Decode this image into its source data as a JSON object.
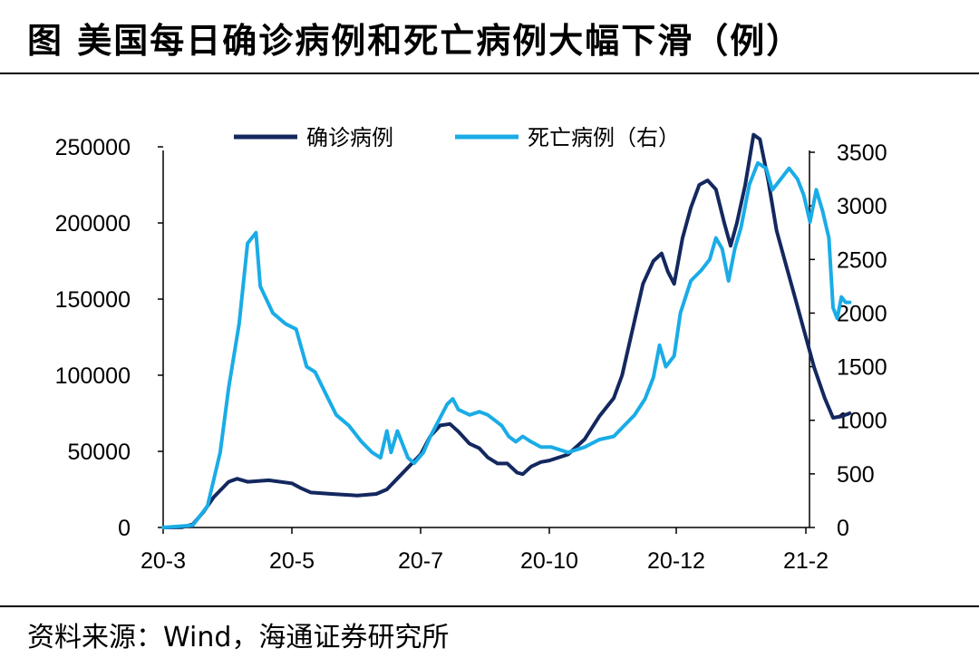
{
  "title": "图  美国每日确诊病例和死亡病例大幅下滑（例）",
  "source": "资料来源：Wind，海通证券研究所",
  "chart_data": {
    "type": "line",
    "x_ticks": [
      "20-3",
      "20-5",
      "20-7",
      "20-10",
      "20-12",
      "21-2"
    ],
    "y_left_ticks": [
      "0",
      "50000",
      "100000",
      "150000",
      "200000",
      "250000"
    ],
    "y_right_ticks": [
      "0",
      "500",
      "1000",
      "1500",
      "2000",
      "2500",
      "3000",
      "3500"
    ],
    "y_left_range": [
      0,
      260000
    ],
    "y_right_range": [
      0,
      3500
    ],
    "legend_position": "top-center",
    "grid": false,
    "series": [
      {
        "name": "确诊病例",
        "axis": "left",
        "color": "#14285f",
        "points": [
          [
            "2020-03-01",
            0
          ],
          [
            "2020-03-10",
            200
          ],
          [
            "2020-03-15",
            2000
          ],
          [
            "2020-03-20",
            10000
          ],
          [
            "2020-03-25",
            20000
          ],
          [
            "2020-04-01",
            30000
          ],
          [
            "2020-04-05",
            32000
          ],
          [
            "2020-04-10",
            30000
          ],
          [
            "2020-04-20",
            31000
          ],
          [
            "2020-05-01",
            29000
          ],
          [
            "2020-05-05",
            26000
          ],
          [
            "2020-05-10",
            23000
          ],
          [
            "2020-05-20",
            22000
          ],
          [
            "2020-06-01",
            21000
          ],
          [
            "2020-06-10",
            22000
          ],
          [
            "2020-06-15",
            25000
          ],
          [
            "2020-06-22",
            35000
          ],
          [
            "2020-07-01",
            48000
          ],
          [
            "2020-07-08",
            60000
          ],
          [
            "2020-07-15",
            67000
          ],
          [
            "2020-07-22",
            68000
          ],
          [
            "2020-07-28",
            63000
          ],
          [
            "2020-08-05",
            55000
          ],
          [
            "2020-08-12",
            52000
          ],
          [
            "2020-08-18",
            46000
          ],
          [
            "2020-08-25",
            42000
          ],
          [
            "2020-09-01",
            42000
          ],
          [
            "2020-09-08",
            36000
          ],
          [
            "2020-09-12",
            35000
          ],
          [
            "2020-09-18",
            40000
          ],
          [
            "2020-09-25",
            43000
          ],
          [
            "2020-10-01",
            44000
          ],
          [
            "2020-10-10",
            48000
          ],
          [
            "2020-10-18",
            58000
          ],
          [
            "2020-10-25",
            73000
          ],
          [
            "2020-11-01",
            85000
          ],
          [
            "2020-11-05",
            100000
          ],
          [
            "2020-11-10",
            130000
          ],
          [
            "2020-11-15",
            160000
          ],
          [
            "2020-11-20",
            175000
          ],
          [
            "2020-11-24",
            180000
          ],
          [
            "2020-11-27",
            168000
          ],
          [
            "2020-11-30",
            160000
          ],
          [
            "2020-12-04",
            190000
          ],
          [
            "2020-12-08",
            210000
          ],
          [
            "2020-12-12",
            225000
          ],
          [
            "2020-12-16",
            228000
          ],
          [
            "2020-12-20",
            222000
          ],
          [
            "2020-12-24",
            200000
          ],
          [
            "2020-12-27",
            185000
          ],
          [
            "2020-12-30",
            200000
          ],
          [
            "2021-01-03",
            225000
          ],
          [
            "2021-01-07",
            258000
          ],
          [
            "2021-01-10",
            255000
          ],
          [
            "2021-01-14",
            228000
          ],
          [
            "2021-01-18",
            195000
          ],
          [
            "2021-01-22",
            175000
          ],
          [
            "2021-01-26",
            155000
          ],
          [
            "2021-01-31",
            130000
          ],
          [
            "2021-02-05",
            105000
          ],
          [
            "2021-02-10",
            85000
          ],
          [
            "2021-02-14",
            72000
          ],
          [
            "2021-02-18",
            73000
          ],
          [
            "2021-02-22",
            75000
          ]
        ]
      },
      {
        "name": "死亡病例（右）",
        "axis": "right",
        "color": "#1aace6",
        "points": [
          [
            "2020-03-01",
            0
          ],
          [
            "2020-03-15",
            20
          ],
          [
            "2020-03-22",
            200
          ],
          [
            "2020-03-28",
            700
          ],
          [
            "2020-04-01",
            1300
          ],
          [
            "2020-04-06",
            1900
          ],
          [
            "2020-04-10",
            2650
          ],
          [
            "2020-04-14",
            2750
          ],
          [
            "2020-04-16",
            2250
          ],
          [
            "2020-04-22",
            2000
          ],
          [
            "2020-04-28",
            1900
          ],
          [
            "2020-05-03",
            1850
          ],
          [
            "2020-05-08",
            1500
          ],
          [
            "2020-05-12",
            1450
          ],
          [
            "2020-05-17",
            1250
          ],
          [
            "2020-05-22",
            1050
          ],
          [
            "2020-05-28",
            950
          ],
          [
            "2020-06-03",
            800
          ],
          [
            "2020-06-08",
            700
          ],
          [
            "2020-06-12",
            650
          ],
          [
            "2020-06-15",
            900
          ],
          [
            "2020-06-17",
            700
          ],
          [
            "2020-06-20",
            900
          ],
          [
            "2020-06-25",
            650
          ],
          [
            "2020-06-28",
            600
          ],
          [
            "2020-07-03",
            700
          ],
          [
            "2020-07-08",
            850
          ],
          [
            "2020-07-14",
            1000
          ],
          [
            "2020-07-20",
            1150
          ],
          [
            "2020-07-24",
            1200
          ],
          [
            "2020-07-28",
            1100
          ],
          [
            "2020-08-05",
            1050
          ],
          [
            "2020-08-12",
            1080
          ],
          [
            "2020-08-18",
            1050
          ],
          [
            "2020-08-23",
            1000
          ],
          [
            "2020-08-28",
            950
          ],
          [
            "2020-09-02",
            850
          ],
          [
            "2020-09-07",
            800
          ],
          [
            "2020-09-12",
            850
          ],
          [
            "2020-09-18",
            800
          ],
          [
            "2020-09-25",
            750
          ],
          [
            "2020-10-02",
            750
          ],
          [
            "2020-10-10",
            700
          ],
          [
            "2020-10-18",
            750
          ],
          [
            "2020-10-25",
            820
          ],
          [
            "2020-11-01",
            850
          ],
          [
            "2020-11-06",
            950
          ],
          [
            "2020-11-11",
            1050
          ],
          [
            "2020-11-16",
            1200
          ],
          [
            "2020-11-20",
            1400
          ],
          [
            "2020-11-23",
            1700
          ],
          [
            "2020-11-26",
            1500
          ],
          [
            "2020-11-30",
            1600
          ],
          [
            "2020-12-03",
            2000
          ],
          [
            "2020-12-08",
            2300
          ],
          [
            "2020-12-13",
            2400
          ],
          [
            "2020-12-17",
            2500
          ],
          [
            "2020-12-20",
            2700
          ],
          [
            "2020-12-23",
            2600
          ],
          [
            "2020-12-26",
            2300
          ],
          [
            "2020-12-29",
            2600
          ],
          [
            "2021-01-01",
            2800
          ],
          [
            "2021-01-05",
            3200
          ],
          [
            "2021-01-09",
            3400
          ],
          [
            "2021-01-13",
            3350
          ],
          [
            "2021-01-16",
            3150
          ],
          [
            "2021-01-20",
            3250
          ],
          [
            "2021-01-24",
            3350
          ],
          [
            "2021-01-28",
            3250
          ],
          [
            "2021-01-31",
            3100
          ],
          [
            "2021-02-03",
            2850
          ],
          [
            "2021-02-06",
            3150
          ],
          [
            "2021-02-09",
            2950
          ],
          [
            "2021-02-12",
            2700
          ],
          [
            "2021-02-14",
            2050
          ],
          [
            "2021-02-16",
            1950
          ],
          [
            "2021-02-18",
            2150
          ],
          [
            "2021-02-20",
            2100
          ],
          [
            "2021-02-22",
            2100
          ]
        ]
      }
    ]
  }
}
